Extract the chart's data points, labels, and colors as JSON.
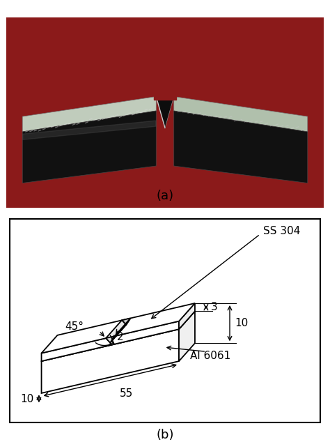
{
  "fig_width": 4.74,
  "fig_height": 6.34,
  "dpi": 100,
  "photo_label": "(a)",
  "diagram_label": "(b)",
  "background_color": "#ffffff",
  "label_fontsize": 13,
  "dim_fontsize": 11,
  "ss304_label": "SS 304",
  "al6061_label": "Al 6061",
  "length_label": "55",
  "width_label": "10",
  "notch_depth_label": "2",
  "ss_thickness_label": "3",
  "total_height_label": "10",
  "angle_label": "45°",
  "photo_bg_color": "#8b1a1a",
  "specimen_top_color": "#b8c8b8",
  "specimen_dark_color": "#1a1a1a",
  "specimen_side_color": "#888888"
}
